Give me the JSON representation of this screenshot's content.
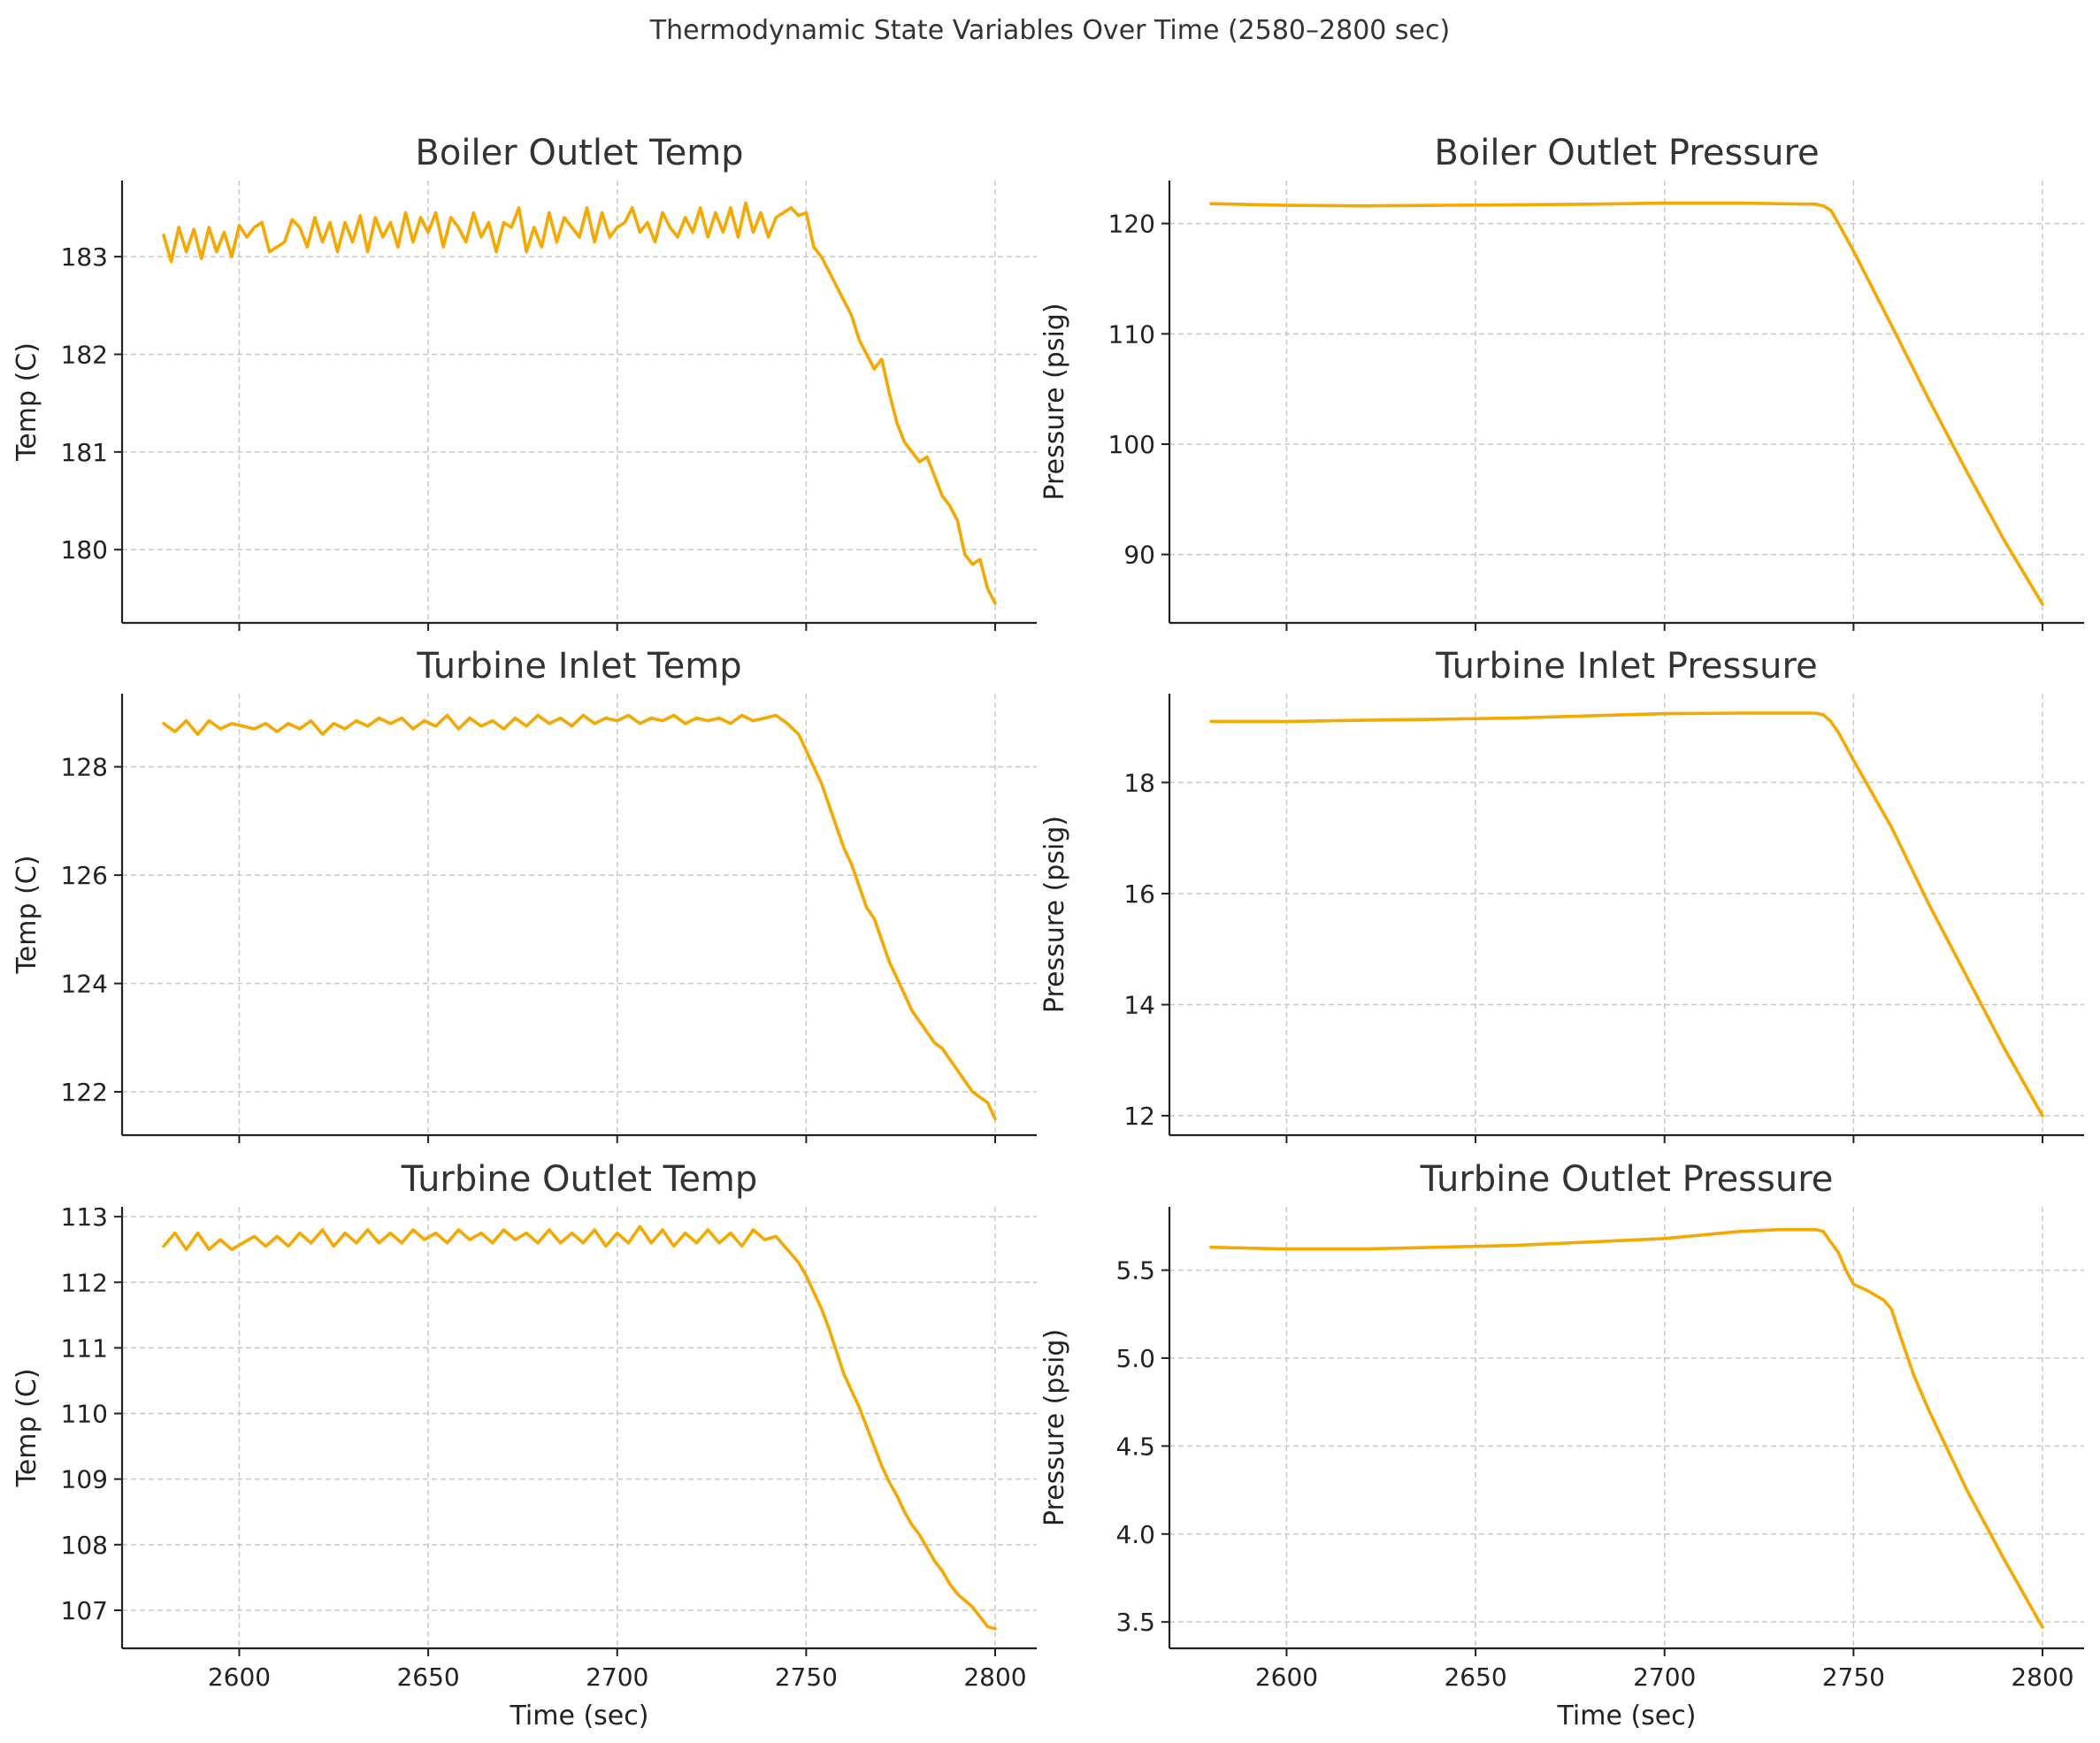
{
  "suptitle": "Thermodynamic State Variables Over Time (2580–2800 sec)",
  "colors": {
    "line": "#f5a800",
    "grid": "#c8c8c8",
    "axis": "#222222",
    "text": "#333333"
  },
  "chart_data": [
    {
      "type": "line",
      "title": "Boiler Outlet Temp",
      "xlabel": "",
      "ylabel": "Temp (C)",
      "xlim": [
        2569,
        2811
      ],
      "ylim": [
        179.25,
        183.78
      ],
      "xticks": [
        2600,
        2650,
        2700,
        2750,
        2800
      ],
      "xtick_labels": [],
      "yticks": [
        180,
        181,
        182,
        183
      ],
      "ytick_labels": [
        "180",
        "181",
        "182",
        "183"
      ],
      "grid": true,
      "x": [
        2580,
        2582,
        2584,
        2586,
        2588,
        2590,
        2592,
        2594,
        2596,
        2598,
        2600,
        2602,
        2604,
        2606,
        2608,
        2610,
        2612,
        2614,
        2616,
        2618,
        2620,
        2622,
        2624,
        2626,
        2628,
        2630,
        2632,
        2634,
        2636,
        2638,
        2640,
        2642,
        2644,
        2646,
        2648,
        2650,
        2652,
        2654,
        2656,
        2658,
        2660,
        2662,
        2664,
        2666,
        2668,
        2670,
        2672,
        2674,
        2676,
        2678,
        2680,
        2682,
        2684,
        2686,
        2688,
        2690,
        2692,
        2694,
        2696,
        2698,
        2700,
        2702,
        2704,
        2706,
        2708,
        2710,
        2712,
        2714,
        2716,
        2718,
        2720,
        2722,
        2724,
        2726,
        2728,
        2730,
        2732,
        2734,
        2736,
        2738,
        2740,
        2742,
        2744,
        2746,
        2748,
        2750,
        2752,
        2754,
        2756,
        2758,
        2760,
        2762,
        2764,
        2766,
        2768,
        2770,
        2772,
        2774,
        2776,
        2778,
        2780,
        2782,
        2784,
        2786,
        2788,
        2790,
        2792,
        2794,
        2796,
        2798,
        2800
      ],
      "series": [
        {
          "values": [
            183.22,
            182.95,
            183.3,
            183.05,
            183.28,
            182.98,
            183.3,
            183.05,
            183.25,
            183.0,
            183.32,
            183.2,
            183.3,
            183.35,
            183.05,
            183.1,
            183.15,
            183.38,
            183.3,
            183.1,
            183.4,
            183.15,
            183.35,
            183.05,
            183.35,
            183.15,
            183.42,
            183.05,
            183.4,
            183.2,
            183.35,
            183.1,
            183.45,
            183.15,
            183.4,
            183.25,
            183.45,
            183.1,
            183.4,
            183.3,
            183.15,
            183.45,
            183.2,
            183.35,
            183.05,
            183.35,
            183.3,
            183.5,
            183.05,
            183.3,
            183.1,
            183.45,
            183.15,
            183.4,
            183.3,
            183.2,
            183.5,
            183.15,
            183.45,
            183.2,
            183.3,
            183.35,
            183.5,
            183.25,
            183.35,
            183.15,
            183.45,
            183.3,
            183.2,
            183.4,
            183.25,
            183.5,
            183.2,
            183.45,
            183.25,
            183.5,
            183.2,
            183.55,
            183.25,
            183.45,
            183.2,
            183.4,
            183.45,
            183.5,
            183.42,
            183.45,
            183.1,
            183.0,
            182.85,
            182.7,
            182.55,
            182.4,
            182.15,
            182.0,
            181.85,
            181.95,
            181.6,
            181.3,
            181.1,
            181.0,
            180.9,
            180.95,
            180.75,
            180.55,
            180.45,
            180.3,
            179.95,
            179.85,
            179.9,
            179.6,
            179.45
          ]
        }
      ]
    },
    {
      "type": "line",
      "title": "Boiler Outlet Pressure",
      "xlabel": "",
      "ylabel": "Pressure (psig)",
      "xlim": [
        2569,
        2811
      ],
      "ylim": [
        83.8,
        123.9
      ],
      "xticks": [
        2600,
        2650,
        2700,
        2750,
        2800
      ],
      "xtick_labels": [],
      "yticks": [
        90,
        100,
        110,
        120
      ],
      "ytick_labels": [
        "90",
        "100",
        "110",
        "120"
      ],
      "grid": true,
      "x": [
        2580,
        2600,
        2620,
        2640,
        2660,
        2680,
        2700,
        2720,
        2740,
        2742,
        2744,
        2746,
        2750,
        2760,
        2770,
        2780,
        2790,
        2800
      ],
      "series": [
        {
          "values": [
            121.8,
            121.65,
            121.6,
            121.65,
            121.7,
            121.75,
            121.85,
            121.85,
            121.75,
            121.6,
            121.2,
            120.0,
            117.5,
            110.8,
            104.0,
            97.5,
            91.2,
            85.5
          ]
        }
      ]
    },
    {
      "type": "line",
      "title": "Turbine Inlet Temp",
      "xlabel": "",
      "ylabel": "Temp (C)",
      "xlim": [
        2569,
        2811
      ],
      "ylim": [
        121.2,
        129.35
      ],
      "xticks": [
        2600,
        2650,
        2700,
        2750,
        2800
      ],
      "xtick_labels": [],
      "yticks": [
        122,
        124,
        126,
        128
      ],
      "ytick_labels": [
        "122",
        "124",
        "126",
        "128"
      ],
      "grid": true,
      "x": [
        2580,
        2583,
        2586,
        2589,
        2592,
        2595,
        2598,
        2601,
        2604,
        2607,
        2610,
        2613,
        2616,
        2619,
        2622,
        2625,
        2628,
        2631,
        2634,
        2637,
        2640,
        2643,
        2646,
        2649,
        2652,
        2655,
        2658,
        2661,
        2664,
        2667,
        2670,
        2673,
        2676,
        2679,
        2682,
        2685,
        2688,
        2691,
        2694,
        2697,
        2700,
        2703,
        2706,
        2709,
        2712,
        2715,
        2718,
        2721,
        2724,
        2727,
        2730,
        2733,
        2736,
        2739,
        2742,
        2745,
        2748,
        2750,
        2752,
        2754,
        2756,
        2758,
        2760,
        2762,
        2764,
        2766,
        2768,
        2770,
        2772,
        2774,
        2776,
        2778,
        2780,
        2782,
        2784,
        2786,
        2788,
        2790,
        2792,
        2794,
        2796,
        2798,
        2800
      ],
      "series": [
        {
          "values": [
            128.8,
            128.65,
            128.85,
            128.6,
            128.85,
            128.7,
            128.8,
            128.75,
            128.7,
            128.8,
            128.65,
            128.8,
            128.7,
            128.85,
            128.6,
            128.8,
            128.7,
            128.85,
            128.75,
            128.9,
            128.8,
            128.9,
            128.7,
            128.85,
            128.75,
            128.95,
            128.7,
            128.9,
            128.75,
            128.85,
            128.7,
            128.9,
            128.75,
            128.95,
            128.8,
            128.9,
            128.75,
            128.95,
            128.8,
            128.9,
            128.85,
            128.95,
            128.8,
            128.9,
            128.85,
            128.95,
            128.8,
            128.9,
            128.85,
            128.9,
            128.8,
            128.95,
            128.85,
            128.9,
            128.95,
            128.8,
            128.6,
            128.3,
            128.0,
            127.7,
            127.3,
            126.9,
            126.5,
            126.2,
            125.8,
            125.4,
            125.2,
            124.8,
            124.4,
            124.1,
            123.8,
            123.5,
            123.3,
            123.1,
            122.9,
            122.8,
            122.6,
            122.4,
            122.2,
            122.0,
            121.9,
            121.8,
            121.5
          ]
        }
      ]
    },
    {
      "type": "line",
      "title": "Turbine Inlet Pressure",
      "xlabel": "",
      "ylabel": "Pressure (psig)",
      "xlim": [
        2569,
        2811
      ],
      "ylim": [
        11.65,
        19.6
      ],
      "xticks": [
        2600,
        2650,
        2700,
        2750,
        2800
      ],
      "xtick_labels": [],
      "yticks": [
        12,
        14,
        16,
        18
      ],
      "ytick_labels": [
        "12",
        "14",
        "16",
        "18"
      ],
      "grid": true,
      "x": [
        2580,
        2600,
        2620,
        2640,
        2660,
        2680,
        2700,
        2720,
        2740,
        2742,
        2744,
        2746,
        2750,
        2760,
        2770,
        2780,
        2790,
        2800
      ],
      "series": [
        {
          "values": [
            19.1,
            19.1,
            19.12,
            19.14,
            19.16,
            19.2,
            19.24,
            19.25,
            19.25,
            19.22,
            19.1,
            18.9,
            18.4,
            17.2,
            15.8,
            14.5,
            13.2,
            12.0
          ]
        }
      ]
    },
    {
      "type": "line",
      "title": "Turbine Outlet Temp",
      "xlabel": "Time (sec)",
      "ylabel": "Temp (C)",
      "xlim": [
        2569,
        2811
      ],
      "ylim": [
        106.42,
        113.15
      ],
      "xticks": [
        2600,
        2650,
        2700,
        2750,
        2800
      ],
      "xtick_labels": [
        "2600",
        "2650",
        "2700",
        "2750",
        "2800"
      ],
      "yticks": [
        107,
        108,
        109,
        110,
        111,
        112,
        113
      ],
      "ytick_labels": [
        "107",
        "108",
        "109",
        "110",
        "111",
        "112",
        "113"
      ],
      "grid": true,
      "x": [
        2580,
        2583,
        2586,
        2589,
        2592,
        2595,
        2598,
        2601,
        2604,
        2607,
        2610,
        2613,
        2616,
        2619,
        2622,
        2625,
        2628,
        2631,
        2634,
        2637,
        2640,
        2643,
        2646,
        2649,
        2652,
        2655,
        2658,
        2661,
        2664,
        2667,
        2670,
        2673,
        2676,
        2679,
        2682,
        2685,
        2688,
        2691,
        2694,
        2697,
        2700,
        2703,
        2706,
        2709,
        2712,
        2715,
        2718,
        2721,
        2724,
        2727,
        2730,
        2733,
        2736,
        2739,
        2742,
        2745,
        2748,
        2750,
        2752,
        2754,
        2756,
        2758,
        2760,
        2762,
        2764,
        2766,
        2768,
        2770,
        2772,
        2774,
        2776,
        2778,
        2780,
        2782,
        2784,
        2786,
        2788,
        2790,
        2792,
        2794,
        2796,
        2798,
        2800
      ],
      "series": [
        {
          "values": [
            112.55,
            112.75,
            112.5,
            112.75,
            112.5,
            112.65,
            112.5,
            112.6,
            112.7,
            112.55,
            112.7,
            112.55,
            112.75,
            112.6,
            112.8,
            112.55,
            112.75,
            112.6,
            112.8,
            112.6,
            112.75,
            112.6,
            112.8,
            112.65,
            112.75,
            112.6,
            112.8,
            112.65,
            112.75,
            112.6,
            112.8,
            112.65,
            112.75,
            112.6,
            112.8,
            112.6,
            112.75,
            112.6,
            112.8,
            112.55,
            112.75,
            112.6,
            112.85,
            112.6,
            112.8,
            112.55,
            112.75,
            112.6,
            112.8,
            112.6,
            112.75,
            112.55,
            112.8,
            112.65,
            112.7,
            112.5,
            112.3,
            112.1,
            111.85,
            111.6,
            111.3,
            110.95,
            110.6,
            110.35,
            110.1,
            109.8,
            109.5,
            109.2,
            108.95,
            108.75,
            108.5,
            108.3,
            108.15,
            107.95,
            107.75,
            107.6,
            107.4,
            107.25,
            107.15,
            107.05,
            106.9,
            106.75,
            106.72
          ]
        }
      ]
    },
    {
      "type": "line",
      "title": "Turbine Outlet Pressure",
      "xlabel": "Time (sec)",
      "ylabel": "Pressure (psig)",
      "xlim": [
        2569,
        2811
      ],
      "ylim": [
        3.35,
        5.86
      ],
      "xticks": [
        2600,
        2650,
        2700,
        2750,
        2800
      ],
      "xtick_labels": [
        "2600",
        "2650",
        "2700",
        "2750",
        "2800"
      ],
      "yticks": [
        3.5,
        4.0,
        4.5,
        5.0,
        5.5
      ],
      "ytick_labels": [
        "3.5",
        "4.0",
        "4.5",
        "5.0",
        "5.5"
      ],
      "grid": true,
      "x": [
        2580,
        2600,
        2620,
        2640,
        2660,
        2680,
        2700,
        2710,
        2720,
        2730,
        2740,
        2742,
        2744,
        2746,
        2748,
        2750,
        2754,
        2758,
        2760,
        2762,
        2766,
        2770,
        2780,
        2790,
        2800
      ],
      "series": [
        {
          "values": [
            5.63,
            5.62,
            5.62,
            5.63,
            5.64,
            5.66,
            5.68,
            5.7,
            5.72,
            5.73,
            5.73,
            5.72,
            5.66,
            5.6,
            5.5,
            5.42,
            5.38,
            5.33,
            5.28,
            5.15,
            4.9,
            4.7,
            4.25,
            3.85,
            3.47
          ]
        }
      ]
    }
  ]
}
